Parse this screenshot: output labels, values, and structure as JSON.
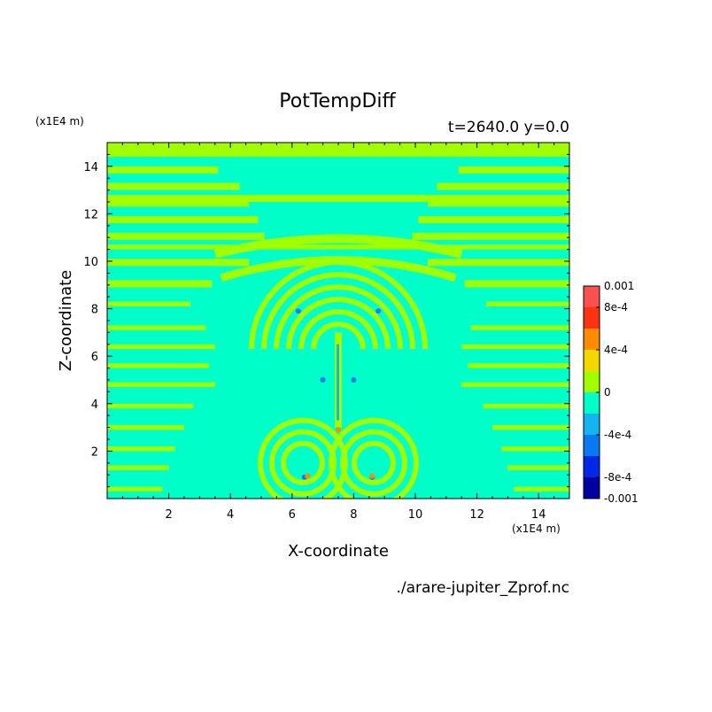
{
  "chart_data": {
    "type": "heatmap",
    "title": "PotTempDiff",
    "info": "t=2640.0 y=0.0",
    "xlabel": "X-coordinate",
    "ylabel": "Z-coordinate",
    "x_unit_label": "(x1E4 m)",
    "y_unit_label": "(x1E4 m)",
    "source_label": "./arare-jupiter_Zprof.nc",
    "xlim": [
      0,
      15
    ],
    "ylim": [
      0,
      15
    ],
    "x_ticks": [
      2,
      4,
      6,
      8,
      10,
      12,
      14
    ],
    "y_ticks": [
      2,
      4,
      6,
      8,
      10,
      12,
      14
    ],
    "x_tick_labels": [
      "2",
      "4",
      "6",
      "8",
      "10",
      "12",
      "14"
    ],
    "y_tick_labels": [
      "2",
      "4",
      "6",
      "8",
      "10",
      "12",
      "14"
    ],
    "colorbar": {
      "levels": [
        -0.001,
        -0.0008,
        -0.0006,
        -0.0004,
        -0.0002,
        0,
        0.0002,
        0.0004,
        0.0006,
        0.0008,
        0.001
      ],
      "colors": [
        "#0000a0",
        "#0028e6",
        "#0a78f0",
        "#14b4f0",
        "#00ffc8",
        "#a0ff00",
        "#f5d700",
        "#ff8c00",
        "#ff3214",
        "#ff5050"
      ],
      "tick_values": [
        0.001,
        0.0008,
        0.0004,
        0,
        -0.0004,
        -0.0008,
        -0.001
      ],
      "tick_labels": [
        "0.001",
        "8e-4",
        "4e-4",
        "0",
        "-4e-4",
        "-8e-4",
        "-0.001"
      ]
    },
    "dominant_field": {
      "background_color": "#00ffc8",
      "band_color": "#a0ff00",
      "accent_colors": [
        "#14b4f0",
        "#0a78f0",
        "#f5d700",
        "#ff8c00"
      ]
    }
  }
}
